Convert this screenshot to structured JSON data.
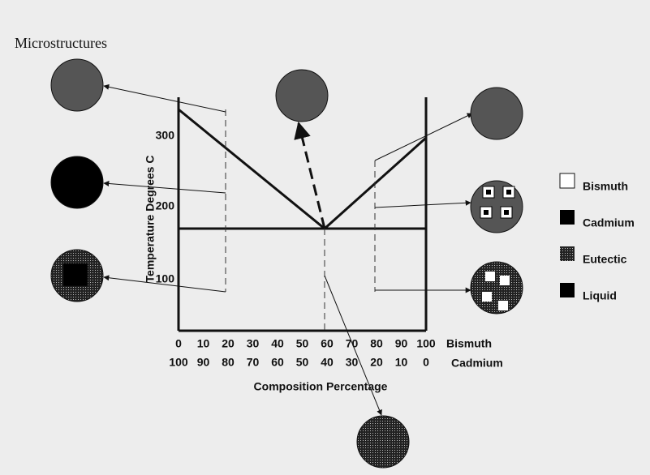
{
  "title": "Microstructures",
  "axes": {
    "y_label": "Temperature Degrees C",
    "y_ticks": [
      100,
      200,
      300
    ],
    "x_label": "Composition Percentage",
    "x_top_name": "Bismuth",
    "x_bottom_name": "Cadmium",
    "x_top": [
      0,
      10,
      20,
      30,
      40,
      50,
      60,
      70,
      80,
      90,
      100
    ],
    "x_bottom": [
      100,
      90,
      80,
      70,
      60,
      50,
      40,
      30,
      20,
      10,
      0
    ]
  },
  "legend": [
    "Bismuth",
    "Cadmium",
    "Eutectic",
    "Liquid"
  ]
}
